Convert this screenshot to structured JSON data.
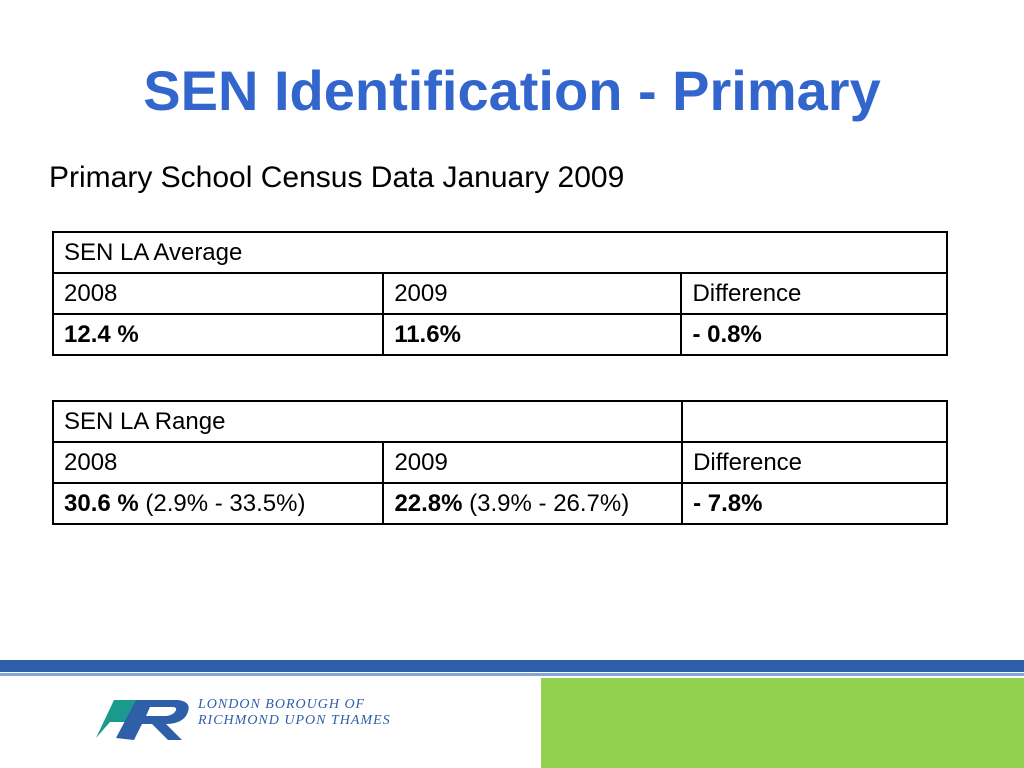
{
  "slide": {
    "title": "SEN Identification - Primary",
    "subtitle": "Primary School Census Data January 2009"
  },
  "table_average": {
    "header": "SEN LA Average",
    "columns": [
      "2008",
      "2009",
      "Difference"
    ],
    "values": [
      "12.4 %",
      "11.6%",
      "- 0.8%"
    ]
  },
  "table_range": {
    "header": "SEN LA Range",
    "columns": [
      "2008",
      "2009",
      "Difference"
    ],
    "values": [
      {
        "main": "30.6 %",
        "range": " (2.9% - 33.5%)"
      },
      {
        "main": "22.8%",
        "range": " (3.9% - 26.7%)"
      },
      {
        "main": "- 7.8%",
        "range": ""
      }
    ]
  },
  "footer": {
    "logo_line1": "LONDON BOROUGH OF",
    "logo_line2": "RICHMOND UPON THAMES",
    "colors": {
      "blue": "#2f5fa8",
      "green": "#92d050",
      "teal": "#1a9a8c"
    }
  }
}
